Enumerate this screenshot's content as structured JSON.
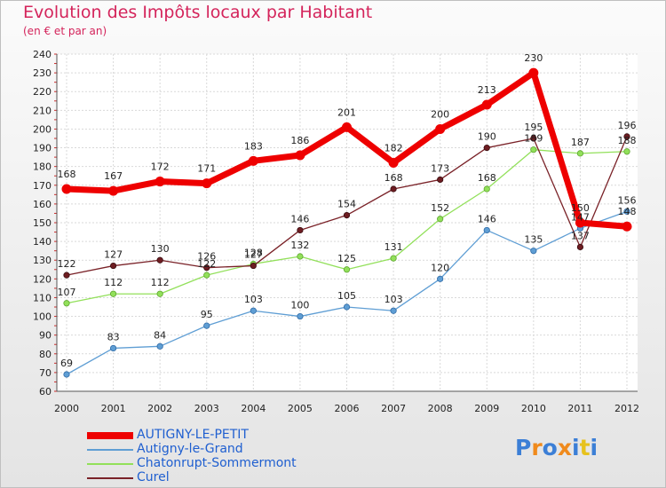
{
  "chart_data": {
    "type": "line",
    "title": "Evolution des Impôts locaux par Habitant",
    "subtitle": "(en € et par an)",
    "x": [
      "2000",
      "2001",
      "2002",
      "2003",
      "2004",
      "2005",
      "2006",
      "2007",
      "2008",
      "2009",
      "2010",
      "2011",
      "2012"
    ],
    "yticks": [
      "60",
      "70",
      "80",
      "90",
      "100",
      "110",
      "120",
      "130",
      "140",
      "150",
      "160",
      "170",
      "180",
      "190",
      "200",
      "210",
      "220",
      "230",
      "240"
    ],
    "ylim": [
      60,
      240
    ],
    "grid": true,
    "legend_position": "bottom-left",
    "series": [
      {
        "name": "AUTIGNY-LE-PETIT",
        "color": "#ee0000",
        "values": [
          168,
          167,
          172,
          171,
          183,
          186,
          201,
          182,
          200,
          213,
          230,
          150,
          148
        ],
        "labels": [
          "168",
          "167",
          "172",
          "171",
          "183",
          "186",
          "201",
          "182",
          "200",
          "213",
          "230",
          "150",
          "148"
        ]
      },
      {
        "name": "Autigny-le-Grand",
        "color": "#5f9ed4",
        "values": [
          69,
          83,
          84,
          95,
          103,
          100,
          105,
          103,
          120,
          146,
          135,
          147,
          156
        ],
        "labels": [
          "69",
          "83",
          "84",
          "95",
          "103",
          "100",
          "105",
          "103",
          "120",
          "146",
          "135",
          "147",
          "156"
        ]
      },
      {
        "name": "Chatonrupt-Sommermont",
        "color": "#92e05a",
        "values": [
          107,
          112,
          112,
          122,
          128,
          132,
          125,
          131,
          152,
          168,
          189,
          187,
          188
        ],
        "labels": [
          "107",
          "112",
          "112",
          "122",
          "128",
          "132",
          "125",
          "131",
          "152",
          "168",
          "189",
          "187",
          "188"
        ]
      },
      {
        "name": "Curel",
        "color": "#7a2228",
        "values": [
          122,
          127,
          130,
          126,
          127,
          146,
          154,
          168,
          173,
          190,
          195,
          137,
          196
        ],
        "labels": [
          "122",
          "127",
          "130",
          "126",
          "127",
          "146",
          "154",
          "168",
          "173",
          "190",
          "195",
          "137",
          "196"
        ]
      }
    ]
  },
  "logo": {
    "text": "Proxiti",
    "letter_colors": [
      "#3c7fd6",
      "#f08a1c",
      "#3c7fd6",
      "#f08a1c",
      "#3c7fd6",
      "#e7c21d",
      "#3c7fd6"
    ]
  }
}
